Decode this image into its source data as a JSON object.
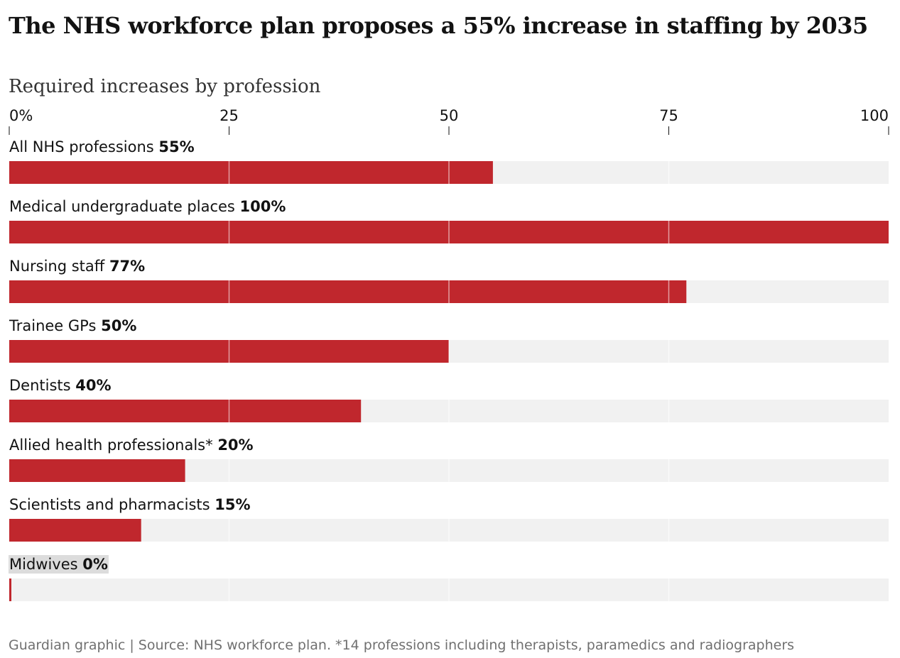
{
  "chart_data": {
    "type": "bar",
    "orientation": "horizontal",
    "title": "The NHS workforce plan proposes a 55% increase in staffing by 2035",
    "subtitle": "Required increases by profession",
    "x_ticks": [
      "0%",
      "25",
      "50",
      "75",
      "100"
    ],
    "xlim": [
      0,
      100
    ],
    "categories": [
      "All NHS professions",
      "Medical undergraduate places",
      "Nursing staff",
      "Trainee GPs",
      "Dentists",
      "Allied health professionals*",
      "Scientists and pharmacists",
      "Midwives"
    ],
    "values": [
      55,
      100,
      77,
      50,
      40,
      20,
      15,
      0
    ],
    "value_labels": [
      "55%",
      "100%",
      "77%",
      "50%",
      "40%",
      "20%",
      "15%",
      "0%"
    ],
    "highlighted_category": "Midwives",
    "grid": true,
    "colors": {
      "bar": "#c0272d",
      "track": "#f1f1f1",
      "highlight_label_bg": "#dcdcdc",
      "gridline": "#dcdcdc",
      "source_text": "#707070"
    },
    "source": "Guardian graphic | Source: NHS workforce plan. *14 professions including therapists, paramedics and radiographers"
  }
}
